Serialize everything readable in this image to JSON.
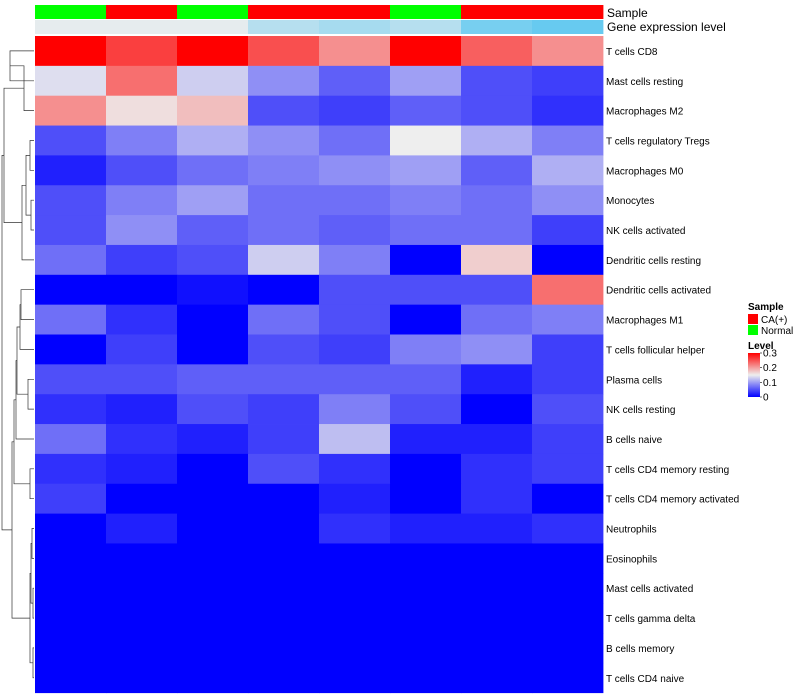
{
  "chart_data": {
    "type": "heatmap",
    "annotation_rows": [
      {
        "name": "Sample",
        "values": [
          "Normal",
          "CA(+)",
          "Normal",
          "CA(+)",
          "CA(+)",
          "Normal",
          "CA(+)",
          "CA(+)"
        ]
      },
      {
        "name": "Gene expression level",
        "values": [
          0.05,
          0.05,
          0.05,
          0.35,
          0.45,
          0.35,
          0.75,
          0.85
        ]
      }
    ],
    "rows": [
      "T cells CD8",
      "Mast cells resting",
      "Macrophages M2",
      "T cells regulatory  Tregs",
      "Macrophages M0",
      "Monocytes",
      "NK cells activated",
      "Dendritic cells resting",
      "Dendritic cells activated",
      "Macrophages M1",
      "T cells follicular helper",
      "Plasma cells",
      "NK cells resting",
      "B cells naive",
      "T cells CD4 memory resting",
      "T cells CD4 memory activated",
      "Neutrophils",
      "Eosinophils",
      "Mast cells activated",
      "T cells gamma delta",
      "B cells memory",
      "T cells CD4 naive"
    ],
    "values": [
      [
        0.3,
        0.26,
        0.3,
        0.25,
        0.21,
        0.3,
        0.24,
        0.21
      ],
      [
        0.14,
        0.23,
        0.13,
        0.09,
        0.06,
        0.1,
        0.05,
        0.04
      ],
      [
        0.21,
        0.16,
        0.18,
        0.05,
        0.04,
        0.06,
        0.05,
        0.03
      ],
      [
        0.05,
        0.08,
        0.11,
        0.09,
        0.07,
        0.15,
        0.11,
        0.08
      ],
      [
        0.02,
        0.05,
        0.07,
        0.08,
        0.09,
        0.1,
        0.06,
        0.11
      ],
      [
        0.05,
        0.08,
        0.1,
        0.07,
        0.07,
        0.08,
        0.07,
        0.09
      ],
      [
        0.05,
        0.09,
        0.06,
        0.07,
        0.06,
        0.07,
        0.07,
        0.04
      ],
      [
        0.07,
        0.04,
        0.05,
        0.13,
        0.08,
        0.0,
        0.17,
        0.0
      ],
      [
        0.0,
        0.0,
        0.01,
        0.0,
        0.05,
        0.05,
        0.05,
        0.23
      ],
      [
        0.07,
        0.03,
        0.0,
        0.07,
        0.05,
        0.0,
        0.07,
        0.08
      ],
      [
        0.0,
        0.04,
        0.0,
        0.05,
        0.04,
        0.08,
        0.09,
        0.04
      ],
      [
        0.05,
        0.05,
        0.06,
        0.06,
        0.06,
        0.06,
        0.02,
        0.04
      ],
      [
        0.03,
        0.02,
        0.05,
        0.04,
        0.08,
        0.05,
        0.0,
        0.05
      ],
      [
        0.07,
        0.03,
        0.02,
        0.04,
        0.12,
        0.02,
        0.02,
        0.04
      ],
      [
        0.03,
        0.02,
        0.0,
        0.05,
        0.03,
        0.0,
        0.03,
        0.04
      ],
      [
        0.04,
        0.0,
        0.0,
        0.0,
        0.02,
        0.0,
        0.03,
        0.0
      ],
      [
        0.0,
        0.02,
        0.0,
        0.0,
        0.03,
        0.02,
        0.02,
        0.03
      ],
      [
        0.0,
        0.0,
        0.0,
        0.0,
        0.0,
        0.0,
        0.0,
        0.0
      ],
      [
        0.0,
        0.0,
        0.0,
        0.0,
        0.0,
        0.0,
        0.0,
        0.0
      ],
      [
        0.0,
        0.0,
        0.0,
        0.0,
        0.0,
        0.0,
        0.0,
        0.0
      ],
      [
        0.0,
        0.0,
        0.0,
        0.0,
        0.0,
        0.0,
        0.0,
        0.0
      ],
      [
        0.0,
        0.0,
        0.0,
        0.0,
        0.0,
        0.0,
        0.0,
        0.0
      ]
    ],
    "color_scale": {
      "min": 0,
      "mid": 0.15,
      "max": 0.3,
      "low_color": "#0000ff",
      "mid_color": "#eeeeee",
      "high_color": "#ff0000"
    },
    "annotation_colors": {
      "CA(+)": "#ff0000",
      "Normal": "#00ff00",
      "gene_low": "#eeeeee",
      "gene_high": "#4fc4f0"
    },
    "legend": {
      "sample_title": "Sample",
      "sample_items": [
        "CA(+)",
        "Normal"
      ],
      "level_title": "Level",
      "level_ticks": [
        0.3,
        0.2,
        0.1,
        0
      ],
      "level_tick_labels": [
        "0.3",
        "0.2",
        "0.1",
        "0"
      ]
    }
  }
}
